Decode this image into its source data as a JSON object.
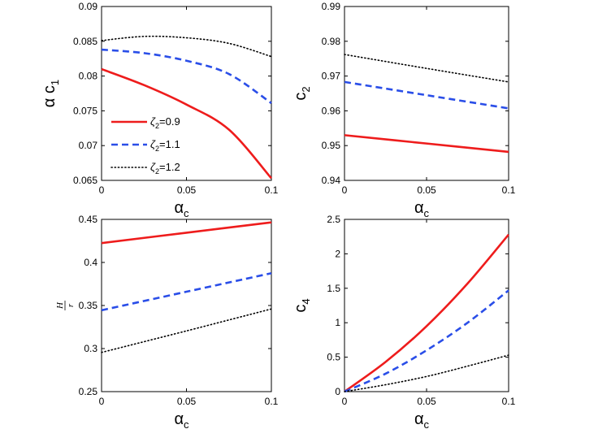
{
  "chart_data": [
    {
      "type": "line",
      "ylabel": "α c",
      "ylabel_sub": "1",
      "xlabel": "α",
      "xlabel_sub": "c",
      "xlim": [
        0,
        0.1
      ],
      "ylim": [
        0.065,
        0.09
      ],
      "xticks": [
        "0",
        "0.05",
        "0.1"
      ],
      "yticks": [
        "0.065",
        "0.07",
        "0.075",
        "0.08",
        "0.085",
        "0.09"
      ],
      "x": [
        0,
        0.025,
        0.05,
        0.075,
        0.1
      ],
      "series": [
        {
          "name": "ζ2=0.9",
          "style": "solid",
          "color": "#ee1c1c",
          "values": [
            0.081,
            0.0787,
            0.0759,
            0.0723,
            0.0653
          ]
        },
        {
          "name": "ζ2=1.1",
          "style": "dashed",
          "color": "#2a4ee8",
          "values": [
            0.0838,
            0.0833,
            0.0822,
            0.0803,
            0.0761
          ]
        },
        {
          "name": "ζ2=1.2",
          "style": "dotted",
          "color": "#000000",
          "values": [
            0.0851,
            0.0857,
            0.0855,
            0.0847,
            0.0828
          ]
        }
      ],
      "legend": {
        "placement": "bottom-left",
        "entries": [
          {
            "sym": "ζ",
            "sub": "2",
            "rest": "=0.9"
          },
          {
            "sym": "ζ",
            "sub": "2",
            "rest": "=1.1"
          },
          {
            "sym": "ζ",
            "sub": "2",
            "rest": "=1.2"
          }
        ]
      }
    },
    {
      "type": "line",
      "ylabel": "c",
      "ylabel_sub": "2",
      "xlabel": "α",
      "xlabel_sub": "c",
      "xlim": [
        0,
        0.1
      ],
      "ylim": [
        0.94,
        0.99
      ],
      "xticks": [
        "0",
        "0.05",
        "0.1"
      ],
      "yticks": [
        "0.94",
        "0.95",
        "0.96",
        "0.97",
        "0.98",
        "0.99"
      ],
      "x": [
        0,
        0.05,
        0.1
      ],
      "series": [
        {
          "name": "ζ2=0.9",
          "style": "solid",
          "color": "#ee1c1c",
          "values": [
            0.953,
            0.9506,
            0.9482
          ]
        },
        {
          "name": "ζ2=1.1",
          "style": "dashed",
          "color": "#2a4ee8",
          "values": [
            0.9683,
            0.9645,
            0.9607
          ]
        },
        {
          "name": "ζ2=1.2",
          "style": "dotted",
          "color": "#000000",
          "values": [
            0.9762,
            0.9722,
            0.9683
          ]
        }
      ]
    },
    {
      "type": "line",
      "ylabel_num": "H",
      "ylabel_den": "r",
      "xlabel": "α",
      "xlabel_sub": "c",
      "xlim": [
        0,
        0.1
      ],
      "ylim": [
        0.25,
        0.45
      ],
      "xticks": [
        "0",
        "0.05",
        "0.1"
      ],
      "yticks": [
        "0.25",
        "0.3",
        "0.35",
        "0.4",
        "0.45"
      ],
      "x": [
        0,
        0.05,
        0.1
      ],
      "series": [
        {
          "name": "ζ2=0.9",
          "style": "solid",
          "color": "#ee1c1c",
          "values": [
            0.4225,
            0.4345,
            0.4465
          ]
        },
        {
          "name": "ζ2=1.1",
          "style": "dashed",
          "color": "#2a4ee8",
          "values": [
            0.3445,
            0.366,
            0.3875
          ]
        },
        {
          "name": "ζ2=1.2",
          "style": "dotted",
          "color": "#000000",
          "values": [
            0.2955,
            0.3205,
            0.346
          ]
        }
      ]
    },
    {
      "type": "line",
      "ylabel": "c",
      "ylabel_sub": "4",
      "xlabel": "α",
      "xlabel_sub": "c",
      "xlim": [
        0,
        0.1
      ],
      "ylim": [
        0,
        2.5
      ],
      "xticks": [
        "0",
        "0.05",
        "0.1"
      ],
      "yticks": [
        "0",
        "0.5",
        "1",
        "1.5",
        "2",
        "2.5"
      ],
      "x": [
        0,
        0.025,
        0.05,
        0.075,
        0.1
      ],
      "series": [
        {
          "name": "ζ2=0.9",
          "style": "solid",
          "color": "#ee1c1c",
          "values": [
            0.0,
            0.43,
            0.95,
            1.57,
            2.28
          ]
        },
        {
          "name": "ζ2=1.1",
          "style": "dashed",
          "color": "#2a4ee8",
          "values": [
            0.0,
            0.26,
            0.6,
            1.0,
            1.47
          ]
        },
        {
          "name": "ζ2=1.2",
          "style": "dotted",
          "color": "#000000",
          "values": [
            0.0,
            0.1,
            0.22,
            0.37,
            0.53
          ]
        }
      ]
    }
  ]
}
